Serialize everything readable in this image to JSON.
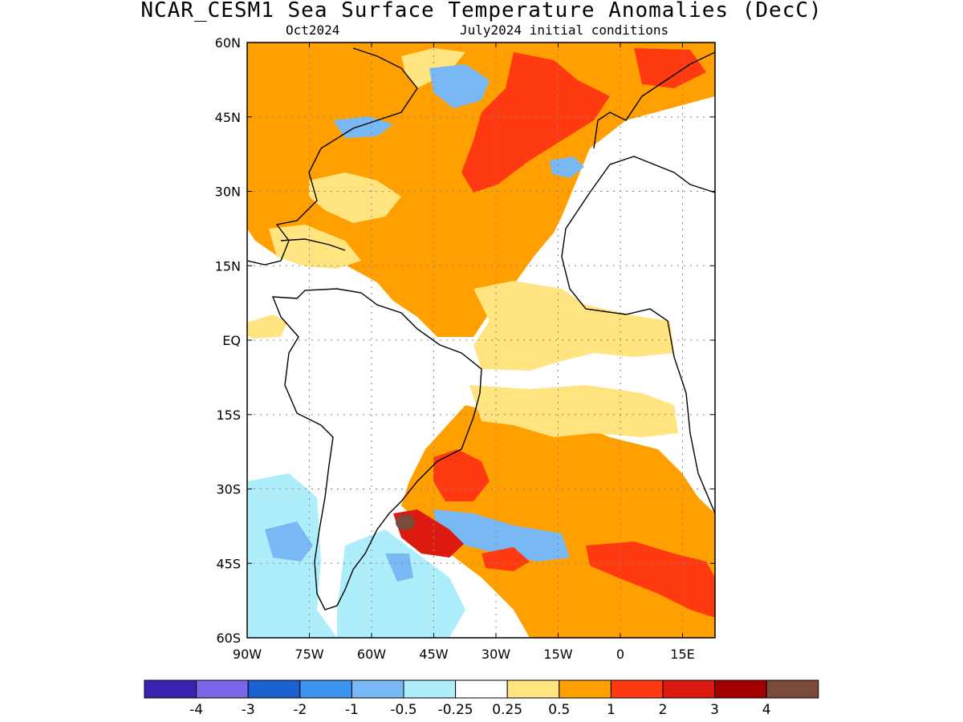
{
  "title": "NCAR_CESM1 Sea Surface Temperature Anomalies (DecC)",
  "subtitle_left": "Oct2024",
  "subtitle_right": "July2024 initial conditions",
  "lat_labels": [
    "60N",
    "45N",
    "30N",
    "15N",
    "EQ",
    "15S",
    "30S",
    "45S",
    "60S"
  ],
  "lon_labels": [
    "90W",
    "75W",
    "60W",
    "45W",
    "30W",
    "15W",
    "0",
    "15E"
  ],
  "colorbar": {
    "colors": [
      "#3a22b0",
      "#7b64e8",
      "#1b5fd0",
      "#3d94f0",
      "#78b8f5",
      "#aeeefa",
      "#ffffff",
      "#ffe480",
      "#ffa000",
      "#ff3a10",
      "#dd1a10",
      "#a50000",
      "#7a4a3a"
    ],
    "labels": [
      "-4",
      "-3",
      "-2",
      "-1",
      "-0.5",
      "-0.25",
      "0.25",
      "0.5",
      "1",
      "2",
      "3",
      "4"
    ]
  }
}
